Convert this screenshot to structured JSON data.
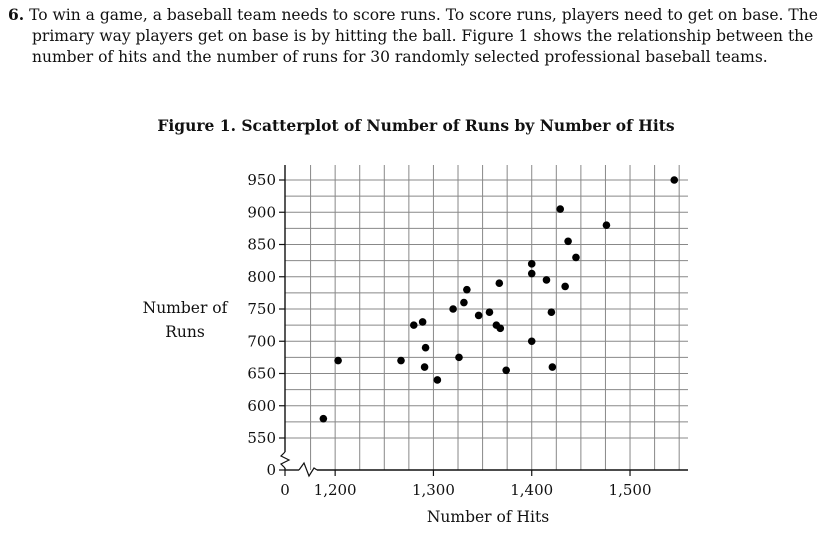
{
  "question": {
    "number": "6.",
    "text": "To win a game, a baseball team needs to score runs. To score runs, players need to get on base. The primary way players get on base is by hitting the ball. Figure 1 shows the relationship between the number of hits and the number of runs for 30 randomly selected professional baseball teams."
  },
  "chart_data": {
    "type": "scatter",
    "title": "Figure 1. Scatterplot of Number of Runs by Number of Hits",
    "xlabel": "Number of Hits",
    "ylabel": "Number of Runs",
    "xticks": [
      "0",
      "1,200",
      "1,300",
      "1,400",
      "1,500"
    ],
    "yticks": [
      "0",
      "550",
      "600",
      "650",
      "700",
      "750",
      "800",
      "850",
      "900",
      "950"
    ],
    "x_axis_break": true,
    "y_axis_break": true,
    "xlim": [
      1150,
      1560
    ],
    "ylim": [
      525,
      965
    ],
    "grid": true,
    "points": [
      {
        "x": 1188,
        "y": 580
      },
      {
        "x": 1203,
        "y": 670
      },
      {
        "x": 1267,
        "y": 670
      },
      {
        "x": 1280,
        "y": 725
      },
      {
        "x": 1289,
        "y": 730
      },
      {
        "x": 1292,
        "y": 690
      },
      {
        "x": 1291,
        "y": 660
      },
      {
        "x": 1304,
        "y": 640
      },
      {
        "x": 1320,
        "y": 750
      },
      {
        "x": 1326,
        "y": 675
      },
      {
        "x": 1331,
        "y": 760
      },
      {
        "x": 1334,
        "y": 780
      },
      {
        "x": 1346,
        "y": 740
      },
      {
        "x": 1357,
        "y": 745
      },
      {
        "x": 1364,
        "y": 725
      },
      {
        "x": 1368,
        "y": 720
      },
      {
        "x": 1367,
        "y": 790
      },
      {
        "x": 1374,
        "y": 655
      },
      {
        "x": 1400,
        "y": 820
      },
      {
        "x": 1400,
        "y": 805
      },
      {
        "x": 1400,
        "y": 700
      },
      {
        "x": 1415,
        "y": 795
      },
      {
        "x": 1420,
        "y": 745
      },
      {
        "x": 1421,
        "y": 660
      },
      {
        "x": 1429,
        "y": 905
      },
      {
        "x": 1434,
        "y": 785
      },
      {
        "x": 1437,
        "y": 855
      },
      {
        "x": 1445,
        "y": 830
      },
      {
        "x": 1476,
        "y": 880
      },
      {
        "x": 1545,
        "y": 950
      }
    ]
  }
}
